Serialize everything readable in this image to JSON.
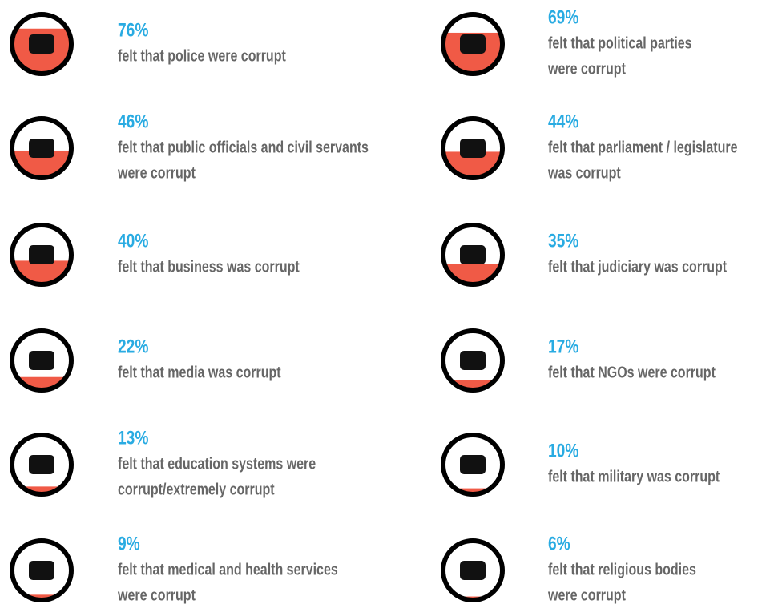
{
  "items": [
    {
      "value": 76,
      "value_label": "76%",
      "lines": [
        "felt that police were corrupt"
      ]
    },
    {
      "value": 69,
      "value_label": "69%",
      "lines": [
        "felt that political parties",
        "were corrupt"
      ]
    },
    {
      "value": 46,
      "value_label": "46%",
      "lines": [
        "felt that public officials and civil servants",
        "were corrupt"
      ]
    },
    {
      "value": 44,
      "value_label": "44%",
      "lines": [
        "felt that parliament / legislature",
        "was corrupt"
      ]
    },
    {
      "value": 40,
      "value_label": "40%",
      "lines": [
        "felt that business was corrupt"
      ]
    },
    {
      "value": 35,
      "value_label": "35%",
      "lines": [
        "felt that judiciary was corrupt"
      ]
    },
    {
      "value": 22,
      "value_label": "22%",
      "lines": [
        "felt that media was corrupt"
      ]
    },
    {
      "value": 17,
      "value_label": "17%",
      "lines": [
        "felt that NGOs were corrupt"
      ]
    },
    {
      "value": 13,
      "value_label": "13%",
      "lines": [
        "felt that education systems were",
        "corrupt/extremely corrupt"
      ]
    },
    {
      "value": 10,
      "value_label": "10%",
      "lines": [
        "felt that military was corrupt"
      ]
    },
    {
      "value": 9,
      "value_label": "9%",
      "lines": [
        "felt that medical and health services",
        "were corrupt"
      ]
    },
    {
      "value": 6,
      "value_label": "6%",
      "lines": [
        "felt that religious bodies",
        "were corrupt"
      ]
    }
  ]
}
